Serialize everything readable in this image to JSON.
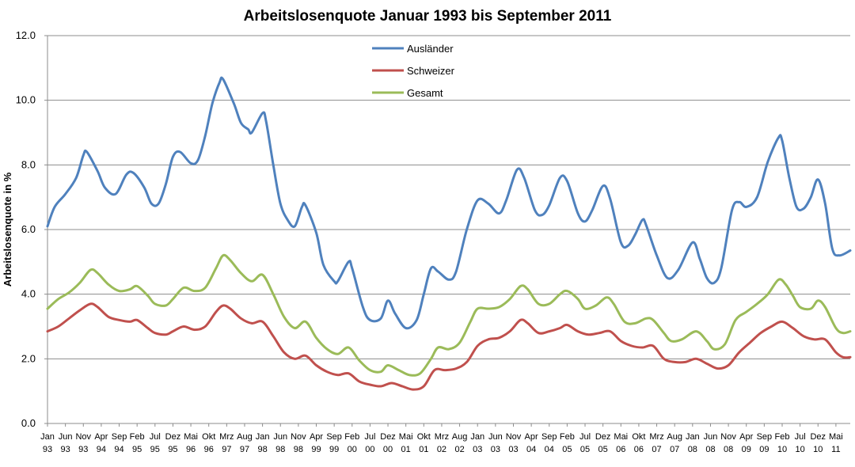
{
  "chart_data": {
    "type": "line",
    "title": "Arbeitslosenquote Januar 1993 bis September 2011",
    "ylabel": "Arbeitslosenquote in %",
    "xlabel": "",
    "ylim": [
      0,
      12
    ],
    "yticks": [
      "0.0",
      "2.0",
      "4.0",
      "6.0",
      "8.0",
      "10.0",
      "12.0"
    ],
    "grid": true,
    "legend_position": "top-center",
    "x_tick_labels": [
      [
        "Jan",
        "93"
      ],
      [
        "Jun",
        "93"
      ],
      [
        "Nov",
        "93"
      ],
      [
        "Apr",
        "94"
      ],
      [
        "Sep",
        "94"
      ],
      [
        "Feb",
        "95"
      ],
      [
        "Jul",
        "95"
      ],
      [
        "Dez",
        "95"
      ],
      [
        "Mai",
        "96"
      ],
      [
        "Okt",
        "96"
      ],
      [
        "Mrz",
        "97"
      ],
      [
        "Aug",
        "97"
      ],
      [
        "Jan",
        "98"
      ],
      [
        "Jun",
        "98"
      ],
      [
        "Nov",
        "98"
      ],
      [
        "Apr",
        "99"
      ],
      [
        "Sep",
        "99"
      ],
      [
        "Feb",
        "00"
      ],
      [
        "Jul",
        "00"
      ],
      [
        "Dez",
        "00"
      ],
      [
        "Mai",
        "01"
      ],
      [
        "Okt",
        "01"
      ],
      [
        "Mrz",
        "02"
      ],
      [
        "Aug",
        "02"
      ],
      [
        "Jan",
        "03"
      ],
      [
        "Jun",
        "03"
      ],
      [
        "Nov",
        "03"
      ],
      [
        "Apr",
        "04"
      ],
      [
        "Sep",
        "04"
      ],
      [
        "Feb",
        "05"
      ],
      [
        "Jul",
        "05"
      ],
      [
        "Dez",
        "05"
      ],
      [
        "Mai",
        "06"
      ],
      [
        "Okt",
        "06"
      ],
      [
        "Mrz",
        "07"
      ],
      [
        "Aug",
        "07"
      ],
      [
        "Jan",
        "08"
      ],
      [
        "Jun",
        "08"
      ],
      [
        "Nov",
        "08"
      ],
      [
        "Apr",
        "09"
      ],
      [
        "Sep",
        "09"
      ],
      [
        "Feb",
        "10"
      ],
      [
        "Jul",
        "10"
      ],
      [
        "Dez",
        "10"
      ],
      [
        "Mai",
        "11"
      ]
    ],
    "x_range": [
      "1993-01",
      "2011-09"
    ],
    "series": [
      {
        "name": "Ausländer",
        "color": "#4F81BD",
        "points": [
          [
            "1993-01",
            6.1
          ],
          [
            "1993-03",
            6.7
          ],
          [
            "1993-06",
            7.1
          ],
          [
            "1993-09",
            7.6
          ],
          [
            "1993-11",
            8.3
          ],
          [
            "1993-12",
            8.4
          ],
          [
            "1994-03",
            7.8
          ],
          [
            "1994-05",
            7.3
          ],
          [
            "1994-08",
            7.1
          ],
          [
            "1994-11",
            7.7
          ],
          [
            "1995-01",
            7.75
          ],
          [
            "1995-04",
            7.3
          ],
          [
            "1995-06",
            6.8
          ],
          [
            "1995-08",
            6.8
          ],
          [
            "1995-10",
            7.4
          ],
          [
            "1995-12",
            8.25
          ],
          [
            "1996-02",
            8.4
          ],
          [
            "1996-05",
            8.05
          ],
          [
            "1996-07",
            8.15
          ],
          [
            "1996-09",
            8.9
          ],
          [
            "1996-11",
            9.9
          ],
          [
            "1997-01",
            10.55
          ],
          [
            "1997-02",
            10.65
          ],
          [
            "1997-05",
            9.9
          ],
          [
            "1997-07",
            9.3
          ],
          [
            "1997-09",
            9.1
          ],
          [
            "1997-10",
            9.0
          ],
          [
            "1998-01",
            9.6
          ],
          [
            "1998-02",
            9.35
          ],
          [
            "1998-04",
            8.0
          ],
          [
            "1998-06",
            6.8
          ],
          [
            "1998-08",
            6.3
          ],
          [
            "1998-10",
            6.1
          ],
          [
            "1998-12",
            6.7
          ],
          [
            "1999-01",
            6.75
          ],
          [
            "1999-04",
            5.9
          ],
          [
            "1999-06",
            4.9
          ],
          [
            "1999-09",
            4.4
          ],
          [
            "1999-10",
            4.4
          ],
          [
            "2000-01",
            5.0
          ],
          [
            "2000-02",
            4.8
          ],
          [
            "2000-05",
            3.6
          ],
          [
            "2000-07",
            3.2
          ],
          [
            "2000-10",
            3.25
          ],
          [
            "2000-12",
            3.8
          ],
          [
            "2001-02",
            3.4
          ],
          [
            "2001-05",
            2.95
          ],
          [
            "2001-08",
            3.2
          ],
          [
            "2001-10",
            4.0
          ],
          [
            "2001-12",
            4.8
          ],
          [
            "2002-02",
            4.7
          ],
          [
            "2002-05",
            4.45
          ],
          [
            "2002-07",
            4.7
          ],
          [
            "2002-10",
            6.0
          ],
          [
            "2003-01",
            6.9
          ],
          [
            "2003-04",
            6.8
          ],
          [
            "2003-07",
            6.5
          ],
          [
            "2003-09",
            6.9
          ],
          [
            "2003-12",
            7.85
          ],
          [
            "2004-02",
            7.6
          ],
          [
            "2004-05",
            6.6
          ],
          [
            "2004-07",
            6.45
          ],
          [
            "2004-09",
            6.75
          ],
          [
            "2004-12",
            7.6
          ],
          [
            "2005-02",
            7.5
          ],
          [
            "2005-05",
            6.5
          ],
          [
            "2005-07",
            6.25
          ],
          [
            "2005-09",
            6.6
          ],
          [
            "2005-12",
            7.35
          ],
          [
            "2006-02",
            6.95
          ],
          [
            "2006-05",
            5.6
          ],
          [
            "2006-07",
            5.5
          ],
          [
            "2006-09",
            5.85
          ],
          [
            "2006-11",
            6.3
          ],
          [
            "2006-12",
            6.15
          ],
          [
            "2007-03",
            5.2
          ],
          [
            "2007-06",
            4.5
          ],
          [
            "2007-09",
            4.75
          ],
          [
            "2008-01",
            5.6
          ],
          [
            "2008-03",
            5.1
          ],
          [
            "2008-05",
            4.5
          ],
          [
            "2008-07",
            4.35
          ],
          [
            "2008-09",
            4.8
          ],
          [
            "2008-12",
            6.6
          ],
          [
            "2009-02",
            6.85
          ],
          [
            "2009-04",
            6.7
          ],
          [
            "2009-07",
            7.0
          ],
          [
            "2009-10",
            8.1
          ],
          [
            "2010-01",
            8.85
          ],
          [
            "2010-02",
            8.75
          ],
          [
            "2010-04",
            7.6
          ],
          [
            "2010-06",
            6.7
          ],
          [
            "2010-08",
            6.65
          ],
          [
            "2010-10",
            7.0
          ],
          [
            "2010-12",
            7.55
          ],
          [
            "2011-02",
            6.8
          ],
          [
            "2011-04",
            5.4
          ],
          [
            "2011-06",
            5.2
          ],
          [
            "2011-09",
            5.35
          ]
        ]
      },
      {
        "name": "Schweizer",
        "color": "#C0504D",
        "points": [
          [
            "1993-01",
            2.85
          ],
          [
            "1993-04",
            3.0
          ],
          [
            "1993-07",
            3.25
          ],
          [
            "1993-10",
            3.5
          ],
          [
            "1994-01",
            3.7
          ],
          [
            "1994-03",
            3.6
          ],
          [
            "1994-06",
            3.3
          ],
          [
            "1994-09",
            3.2
          ],
          [
            "1994-12",
            3.15
          ],
          [
            "1995-02",
            3.2
          ],
          [
            "1995-05",
            2.95
          ],
          [
            "1995-07",
            2.8
          ],
          [
            "1995-10",
            2.75
          ],
          [
            "1995-12",
            2.85
          ],
          [
            "1996-03",
            3.0
          ],
          [
            "1996-06",
            2.9
          ],
          [
            "1996-09",
            3.0
          ],
          [
            "1996-12",
            3.45
          ],
          [
            "1997-02",
            3.65
          ],
          [
            "1997-04",
            3.55
          ],
          [
            "1997-07",
            3.25
          ],
          [
            "1997-10",
            3.1
          ],
          [
            "1998-01",
            3.15
          ],
          [
            "1998-04",
            2.7
          ],
          [
            "1998-07",
            2.2
          ],
          [
            "1998-10",
            2.0
          ],
          [
            "1999-01",
            2.1
          ],
          [
            "1999-04",
            1.8
          ],
          [
            "1999-07",
            1.6
          ],
          [
            "1999-10",
            1.5
          ],
          [
            "2000-01",
            1.55
          ],
          [
            "2000-04",
            1.3
          ],
          [
            "2000-07",
            1.2
          ],
          [
            "2000-10",
            1.15
          ],
          [
            "2001-01",
            1.25
          ],
          [
            "2001-04",
            1.15
          ],
          [
            "2001-07",
            1.05
          ],
          [
            "2001-10",
            1.15
          ],
          [
            "2002-01",
            1.65
          ],
          [
            "2002-04",
            1.65
          ],
          [
            "2002-07",
            1.7
          ],
          [
            "2002-10",
            1.9
          ],
          [
            "2003-01",
            2.4
          ],
          [
            "2003-04",
            2.6
          ],
          [
            "2003-07",
            2.65
          ],
          [
            "2003-10",
            2.85
          ],
          [
            "2004-01",
            3.2
          ],
          [
            "2004-03",
            3.1
          ],
          [
            "2004-06",
            2.8
          ],
          [
            "2004-09",
            2.85
          ],
          [
            "2004-12",
            2.95
          ],
          [
            "2005-02",
            3.05
          ],
          [
            "2005-05",
            2.85
          ],
          [
            "2005-08",
            2.75
          ],
          [
            "2005-11",
            2.8
          ],
          [
            "2006-02",
            2.85
          ],
          [
            "2006-05",
            2.55
          ],
          [
            "2006-08",
            2.4
          ],
          [
            "2006-11",
            2.35
          ],
          [
            "2007-02",
            2.4
          ],
          [
            "2007-05",
            2.0
          ],
          [
            "2007-08",
            1.9
          ],
          [
            "2007-11",
            1.9
          ],
          [
            "2008-02",
            2.0
          ],
          [
            "2008-05",
            1.85
          ],
          [
            "2008-08",
            1.7
          ],
          [
            "2008-11",
            1.8
          ],
          [
            "2009-02",
            2.2
          ],
          [
            "2009-05",
            2.5
          ],
          [
            "2009-08",
            2.8
          ],
          [
            "2009-11",
            3.0
          ],
          [
            "2010-02",
            3.15
          ],
          [
            "2010-05",
            2.95
          ],
          [
            "2010-08",
            2.7
          ],
          [
            "2010-11",
            2.6
          ],
          [
            "2011-02",
            2.6
          ],
          [
            "2011-05",
            2.2
          ],
          [
            "2011-07",
            2.05
          ],
          [
            "2011-09",
            2.05
          ]
        ]
      },
      {
        "name": "Gesamt",
        "color": "#9BBB59",
        "points": [
          [
            "1993-01",
            3.55
          ],
          [
            "1993-04",
            3.85
          ],
          [
            "1993-07",
            4.05
          ],
          [
            "1993-10",
            4.35
          ],
          [
            "1994-01",
            4.75
          ],
          [
            "1994-03",
            4.65
          ],
          [
            "1994-06",
            4.3
          ],
          [
            "1994-09",
            4.1
          ],
          [
            "1994-12",
            4.15
          ],
          [
            "1995-02",
            4.25
          ],
          [
            "1995-05",
            3.95
          ],
          [
            "1995-07",
            3.7
          ],
          [
            "1995-10",
            3.65
          ],
          [
            "1995-12",
            3.85
          ],
          [
            "1996-03",
            4.2
          ],
          [
            "1996-06",
            4.1
          ],
          [
            "1996-09",
            4.2
          ],
          [
            "1996-12",
            4.8
          ],
          [
            "1997-02",
            5.2
          ],
          [
            "1997-04",
            5.05
          ],
          [
            "1997-07",
            4.65
          ],
          [
            "1997-10",
            4.4
          ],
          [
            "1998-01",
            4.6
          ],
          [
            "1998-04",
            4.0
          ],
          [
            "1998-07",
            3.3
          ],
          [
            "1998-10",
            2.95
          ],
          [
            "1999-01",
            3.15
          ],
          [
            "1999-04",
            2.65
          ],
          [
            "1999-07",
            2.3
          ],
          [
            "1999-10",
            2.15
          ],
          [
            "2000-01",
            2.35
          ],
          [
            "2000-04",
            1.95
          ],
          [
            "2000-07",
            1.65
          ],
          [
            "2000-10",
            1.6
          ],
          [
            "2000-12",
            1.8
          ],
          [
            "2001-03",
            1.65
          ],
          [
            "2001-06",
            1.5
          ],
          [
            "2001-09",
            1.55
          ],
          [
            "2001-12",
            2.0
          ],
          [
            "2002-02",
            2.35
          ],
          [
            "2002-05",
            2.3
          ],
          [
            "2002-08",
            2.5
          ],
          [
            "2002-11",
            3.15
          ],
          [
            "2003-01",
            3.55
          ],
          [
            "2003-04",
            3.55
          ],
          [
            "2003-07",
            3.6
          ],
          [
            "2003-10",
            3.85
          ],
          [
            "2004-01",
            4.25
          ],
          [
            "2004-03",
            4.15
          ],
          [
            "2004-06",
            3.7
          ],
          [
            "2004-09",
            3.7
          ],
          [
            "2004-12",
            4.0
          ],
          [
            "2005-02",
            4.1
          ],
          [
            "2005-05",
            3.85
          ],
          [
            "2005-07",
            3.55
          ],
          [
            "2005-10",
            3.65
          ],
          [
            "2006-01",
            3.9
          ],
          [
            "2006-03",
            3.7
          ],
          [
            "2006-06",
            3.15
          ],
          [
            "2006-09",
            3.1
          ],
          [
            "2006-12",
            3.25
          ],
          [
            "2007-02",
            3.2
          ],
          [
            "2007-05",
            2.8
          ],
          [
            "2007-07",
            2.55
          ],
          [
            "2007-10",
            2.6
          ],
          [
            "2008-02",
            2.85
          ],
          [
            "2008-05",
            2.55
          ],
          [
            "2008-07",
            2.3
          ],
          [
            "2008-10",
            2.45
          ],
          [
            "2009-01",
            3.2
          ],
          [
            "2009-04",
            3.45
          ],
          [
            "2009-07",
            3.7
          ],
          [
            "2009-10",
            4.0
          ],
          [
            "2010-01",
            4.45
          ],
          [
            "2010-03",
            4.3
          ],
          [
            "2010-05",
            3.95
          ],
          [
            "2010-07",
            3.6
          ],
          [
            "2010-10",
            3.55
          ],
          [
            "2010-12",
            3.8
          ],
          [
            "2011-02",
            3.6
          ],
          [
            "2011-05",
            2.95
          ],
          [
            "2011-07",
            2.8
          ],
          [
            "2011-09",
            2.85
          ]
        ]
      }
    ]
  }
}
